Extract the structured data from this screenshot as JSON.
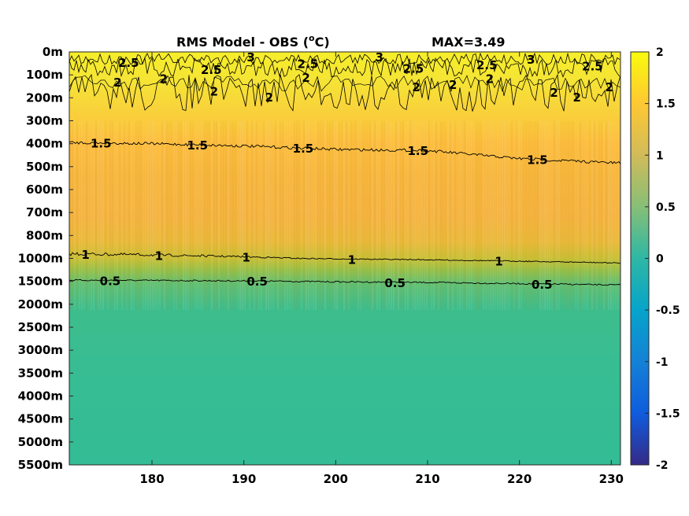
{
  "chart_data": {
    "type": "heatmap",
    "title": "RMS Model - OBS (",
    "title_unit": "o",
    "title_unit_suffix": "C)",
    "max_label": "MAX=3.49",
    "xlabel": "",
    "ylabel": "",
    "x_range": [
      171,
      231
    ],
    "x_ticks": [
      180,
      190,
      200,
      210,
      220,
      230
    ],
    "y_ticks": [
      "0m",
      "100m",
      "200m",
      "300m",
      "400m",
      "500m",
      "600m",
      "700m",
      "800m",
      "1000m",
      "1500m",
      "2000m",
      "2500m",
      "3000m",
      "3500m",
      "4000m",
      "4500m",
      "5000m",
      "5500m"
    ],
    "y_depths": [
      0,
      100,
      200,
      300,
      400,
      500,
      600,
      700,
      800,
      1000,
      1500,
      2000,
      2500,
      3000,
      3500,
      4000,
      4500,
      5000,
      5500
    ],
    "colorbar": {
      "range": [
        -2,
        2
      ],
      "ticks": [
        "2",
        "1.5",
        "1",
        "0.5",
        "0",
        "-0.5",
        "-1",
        "-1.5",
        "-2"
      ],
      "tick_values": [
        2,
        1.5,
        1,
        0.5,
        0,
        -0.5,
        -1,
        -1.5,
        -2
      ],
      "colormap": "parula"
    },
    "contours": [
      {
        "level": 0.5,
        "label": "0.5",
        "points": [
          [
            171,
            1475
          ],
          [
            180,
            1480
          ],
          [
            190,
            1490
          ],
          [
            200,
            1510
          ],
          [
            210,
            1525
          ],
          [
            220,
            1550
          ],
          [
            231,
            1580
          ]
        ],
        "label_x": [
          175,
          191,
          206,
          222
        ]
      },
      {
        "level": 1.0,
        "label": "1",
        "points": [
          [
            171,
            960
          ],
          [
            180,
            970
          ],
          [
            190,
            985
          ],
          [
            200,
            1010
          ],
          [
            210,
            1030
          ],
          [
            220,
            1060
          ],
          [
            231,
            1100
          ]
        ],
        "label_x": [
          173,
          181,
          190.5,
          202,
          218
        ]
      },
      {
        "level": 1.5,
        "label": "1.5",
        "points": [
          [
            171,
            395
          ],
          [
            180,
            400
          ],
          [
            190,
            410
          ],
          [
            200,
            425
          ],
          [
            210,
            430
          ],
          [
            220,
            465
          ],
          [
            231,
            485
          ]
        ],
        "label_x": [
          174,
          184.5,
          196,
          208.5,
          221.5
        ]
      }
    ],
    "top_contour_labels": [
      {
        "label": "2.5",
        "x": 177,
        "d": 45
      },
      {
        "label": "2",
        "x": 176.5,
        "d": 130
      },
      {
        "label": "2",
        "x": 181.5,
        "d": 115
      },
      {
        "label": "2.5",
        "x": 186,
        "d": 75
      },
      {
        "label": "2",
        "x": 187,
        "d": 170
      },
      {
        "label": "3",
        "x": 191,
        "d": 20
      },
      {
        "label": "2",
        "x": 193,
        "d": 195
      },
      {
        "label": "2.5",
        "x": 196.5,
        "d": 50
      },
      {
        "label": "2",
        "x": 197,
        "d": 110
      },
      {
        "label": "3",
        "x": 205,
        "d": 20
      },
      {
        "label": "2.5",
        "x": 208,
        "d": 70
      },
      {
        "label": "2",
        "x": 209,
        "d": 150
      },
      {
        "label": "2",
        "x": 213,
        "d": 140
      },
      {
        "label": "2.5",
        "x": 216,
        "d": 55
      },
      {
        "label": "2",
        "x": 217,
        "d": 115
      },
      {
        "label": "3",
        "x": 221.5,
        "d": 30
      },
      {
        "label": "2",
        "x": 224,
        "d": 175
      },
      {
        "label": "2",
        "x": 226.5,
        "d": 195
      },
      {
        "label": "2.5",
        "x": 227.5,
        "d": 60
      },
      {
        "label": "2",
        "x": 230,
        "d": 150
      }
    ]
  }
}
